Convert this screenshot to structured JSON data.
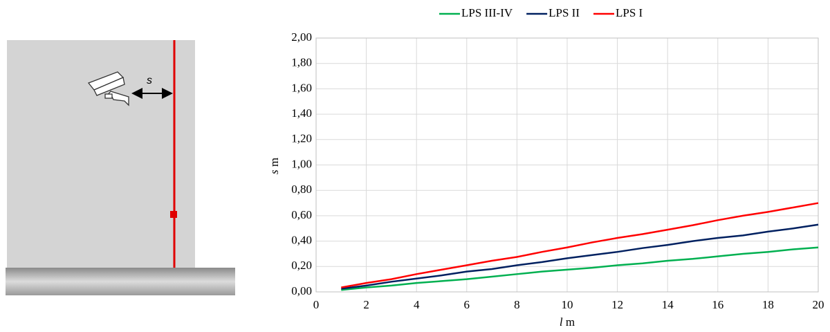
{
  "illustration": {
    "label": "s"
  },
  "chart_data": {
    "type": "line",
    "xlabel": [
      "l",
      "m"
    ],
    "ylabel": [
      "s",
      "m"
    ],
    "x": [
      1,
      2,
      3,
      4,
      5,
      6,
      7,
      8,
      9,
      10,
      11,
      12,
      13,
      14,
      15,
      16,
      17,
      18,
      19,
      20
    ],
    "series": [
      {
        "name": "LPS III-IV",
        "color": "#00b050",
        "values": [
          0.015,
          0.035,
          0.05,
          0.07,
          0.085,
          0.1,
          0.12,
          0.14,
          0.16,
          0.175,
          0.19,
          0.21,
          0.225,
          0.245,
          0.26,
          0.28,
          0.3,
          0.315,
          0.335,
          0.35
        ]
      },
      {
        "name": "LPS II",
        "color": "#002060",
        "values": [
          0.025,
          0.05,
          0.08,
          0.105,
          0.13,
          0.16,
          0.18,
          0.21,
          0.235,
          0.265,
          0.29,
          0.315,
          0.345,
          0.37,
          0.4,
          0.425,
          0.445,
          0.475,
          0.5,
          0.53
        ]
      },
      {
        "name": "LPS I",
        "color": "#ff0000",
        "values": [
          0.035,
          0.07,
          0.1,
          0.14,
          0.175,
          0.21,
          0.245,
          0.275,
          0.315,
          0.35,
          0.39,
          0.425,
          0.455,
          0.49,
          0.525,
          0.565,
          0.6,
          0.63,
          0.665,
          0.7
        ]
      }
    ],
    "xlim": [
      0,
      20
    ],
    "xticks": [
      0,
      2,
      4,
      6,
      8,
      10,
      12,
      14,
      16,
      18,
      20
    ],
    "ylim": [
      0,
      2
    ],
    "yticks": [
      {
        "value": 0,
        "label": "0,00"
      },
      {
        "value": 0.2,
        "label": "0,20"
      },
      {
        "value": 0.4,
        "label": "0,40"
      },
      {
        "value": 0.6,
        "label": "0,60"
      },
      {
        "value": 0.8,
        "label": "0,80"
      },
      {
        "value": 1.0,
        "label": "1,00"
      },
      {
        "value": 1.2,
        "label": "1,20"
      },
      {
        "value": 1.4,
        "label": "1,40"
      },
      {
        "value": 1.6,
        "label": "1,60"
      },
      {
        "value": 1.8,
        "label": "1,80"
      },
      {
        "value": 2.0,
        "label": "2,00"
      }
    ],
    "grid": true,
    "legend": "top"
  }
}
